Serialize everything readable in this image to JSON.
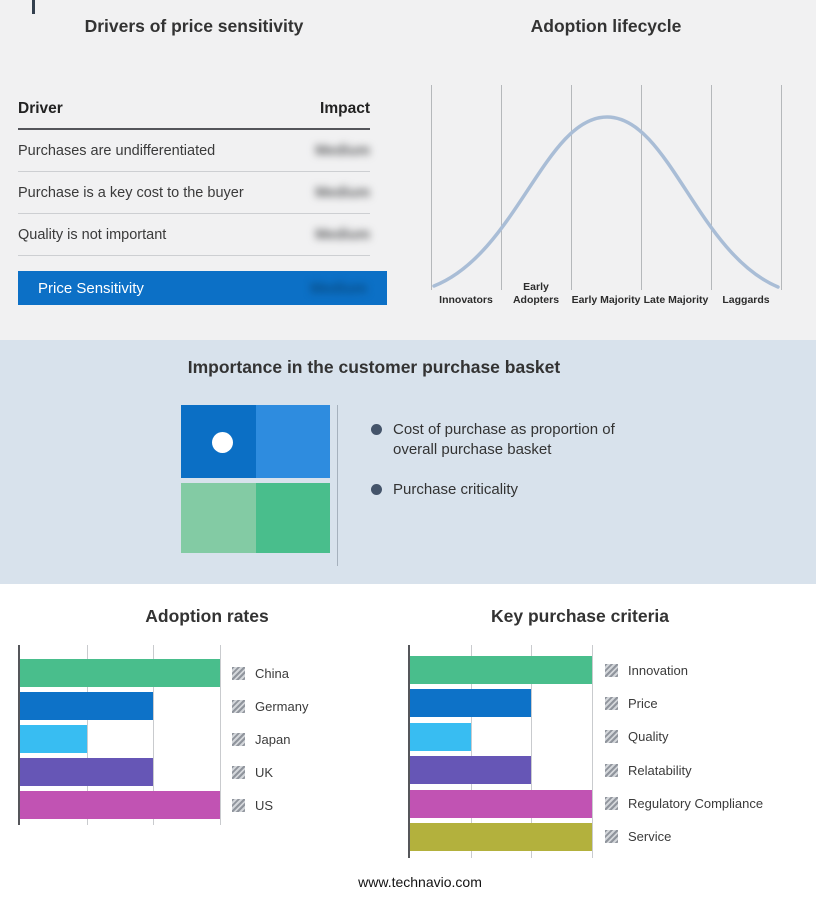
{
  "basket_panel": {
    "title": "Importance in the customer purchase basket",
    "bullets": [
      "Cost of purchase as proportion of overall purchase basket",
      "Purchase criticality"
    ],
    "quadrant_colors": [
      "#0B6FC5",
      "#2E8CDF",
      "#83CBA4",
      "#49BE8C"
    ]
  },
  "footer": {
    "text": "www.technavio.com"
  },
  "colors": {
    "highlight_row_bg": "#0C70C6",
    "band_bg": "#D8E2EC",
    "top_bg": "#F1F1F2",
    "bullet": "#44546A",
    "curve": "#A9BDD6"
  },
  "chart_data": [
    {
      "type": "bar",
      "orientation": "horizontal",
      "title": "Adoption rates",
      "categories": [
        "China",
        "Germany",
        "Japan",
        "UK",
        "US"
      ],
      "values": [
        3,
        2,
        1,
        2,
        3
      ],
      "xmax": 3,
      "colors": [
        "#49BE8C",
        "#0D72C8",
        "#38BDF2",
        "#6656B6",
        "#C153B3"
      ],
      "xlabel": "",
      "ylabel": "",
      "grid": true,
      "legend_position": "right"
    },
    {
      "type": "bar",
      "orientation": "horizontal",
      "title": "Key purchase criteria",
      "categories": [
        "Innovation",
        "Price",
        "Quality",
        "Relatability",
        "Regulatory Compliance",
        "Service"
      ],
      "values": [
        3,
        2,
        1,
        2,
        3,
        3
      ],
      "xmax": 3,
      "colors": [
        "#49BE8C",
        "#0D72C8",
        "#38BDF2",
        "#6656B6",
        "#C153B3",
        "#B3B13D"
      ],
      "xlabel": "",
      "ylabel": "",
      "grid": true,
      "legend_position": "right"
    },
    {
      "type": "line",
      "title": "Adoption lifecycle",
      "categories": [
        "Innovators",
        "Early Adopters",
        "Early Majority",
        "Late Majority",
        "Laggards"
      ],
      "shape": "bell curve peaking at Early Majority",
      "curve_color": "#A9BDD6",
      "grid": true
    },
    {
      "type": "table",
      "title": "Drivers of price sensitivity",
      "columns": [
        "Driver",
        "Impact"
      ],
      "rows": [
        [
          "Purchases are undifferentiated",
          "Medium"
        ],
        [
          "Purchase is a key cost to the buyer",
          "Medium"
        ],
        [
          "Quality is not important",
          "Medium"
        ],
        [
          "Price Sensitivity",
          "Medium"
        ]
      ],
      "impact_values_blurred": true
    }
  ]
}
